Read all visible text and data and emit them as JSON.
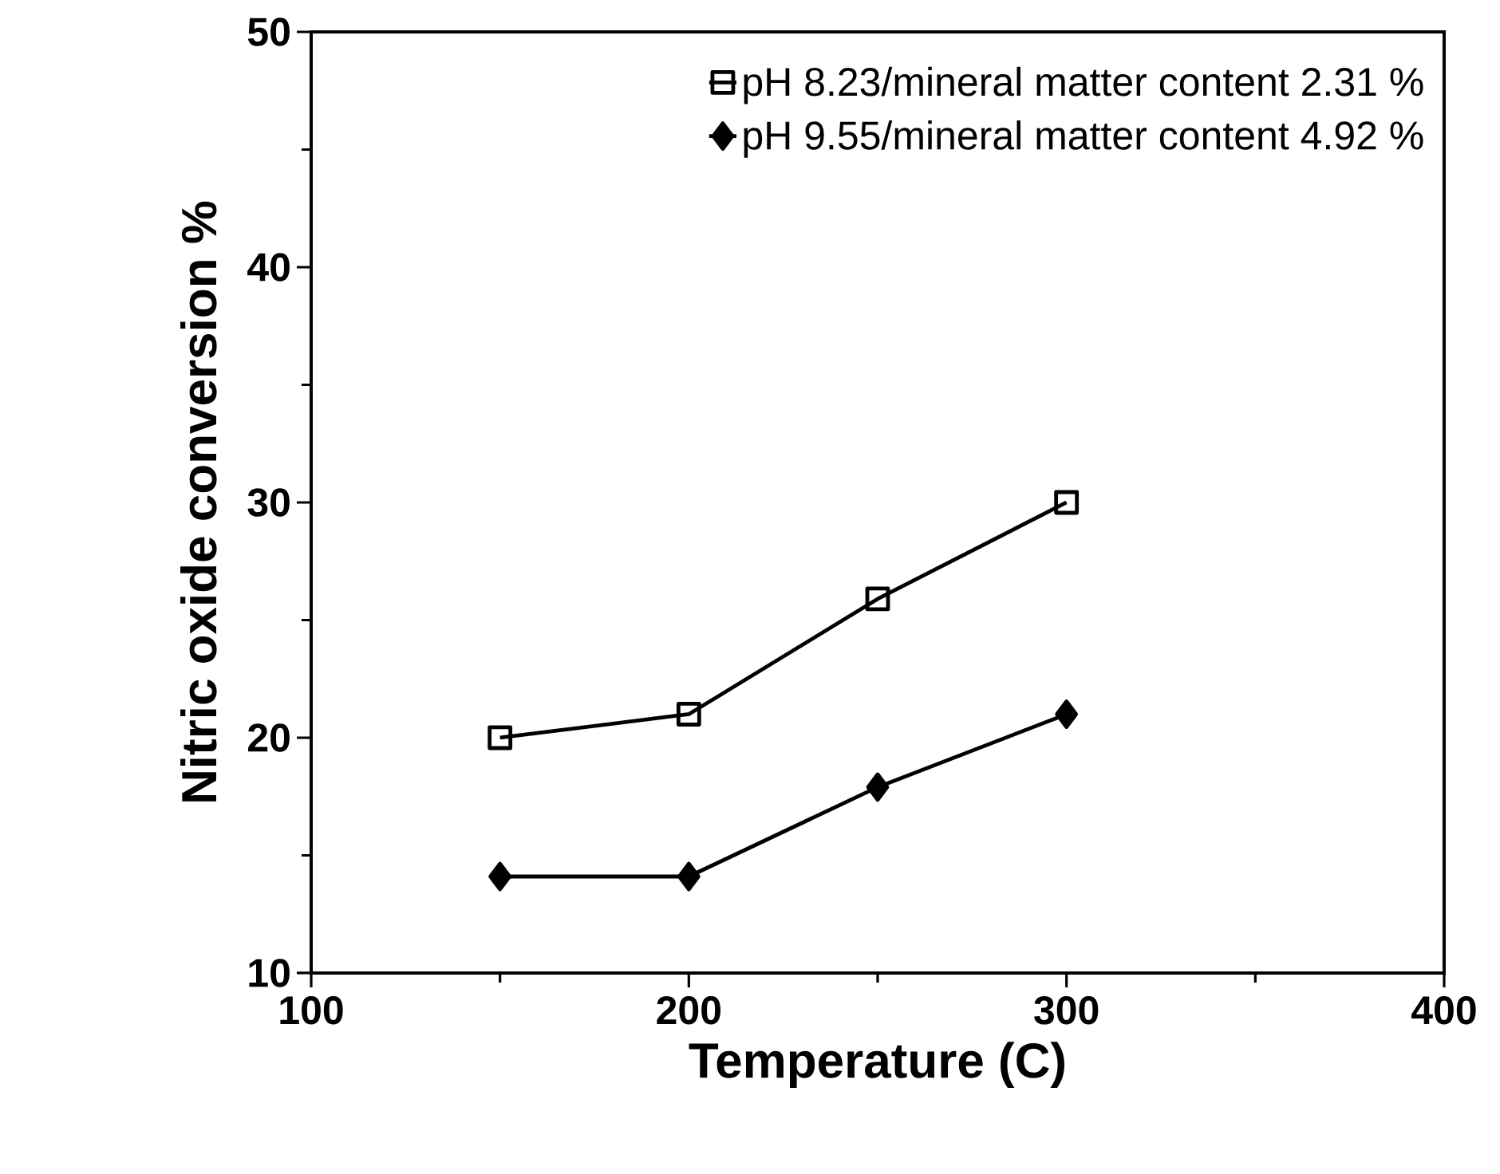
{
  "chart_data": {
    "type": "line",
    "xlabel": "Temperature   (C)",
    "ylabel": "Nitric oxide conversion %",
    "x": [
      150,
      200,
      250,
      300
    ],
    "series": [
      {
        "name": "pH 8.23/mineral matter content 2.31 %",
        "color": "#000000",
        "marker": "square",
        "values": [
          20,
          21,
          25.9,
          30
        ]
      },
      {
        "name": "pH 9.55/mineral matter content 4.92 %",
        "color": "#000000",
        "marker": "diamond",
        "values": [
          14.1,
          14.1,
          17.9,
          21
        ]
      }
    ],
    "xlim": [
      100,
      400
    ],
    "xticks": [
      100,
      200,
      300,
      400
    ],
    "ylim": [
      10,
      50
    ],
    "yticks": [
      10,
      20,
      30,
      40,
      50
    ],
    "grid": false,
    "legend": "top right",
    "line_style": "solid"
  }
}
